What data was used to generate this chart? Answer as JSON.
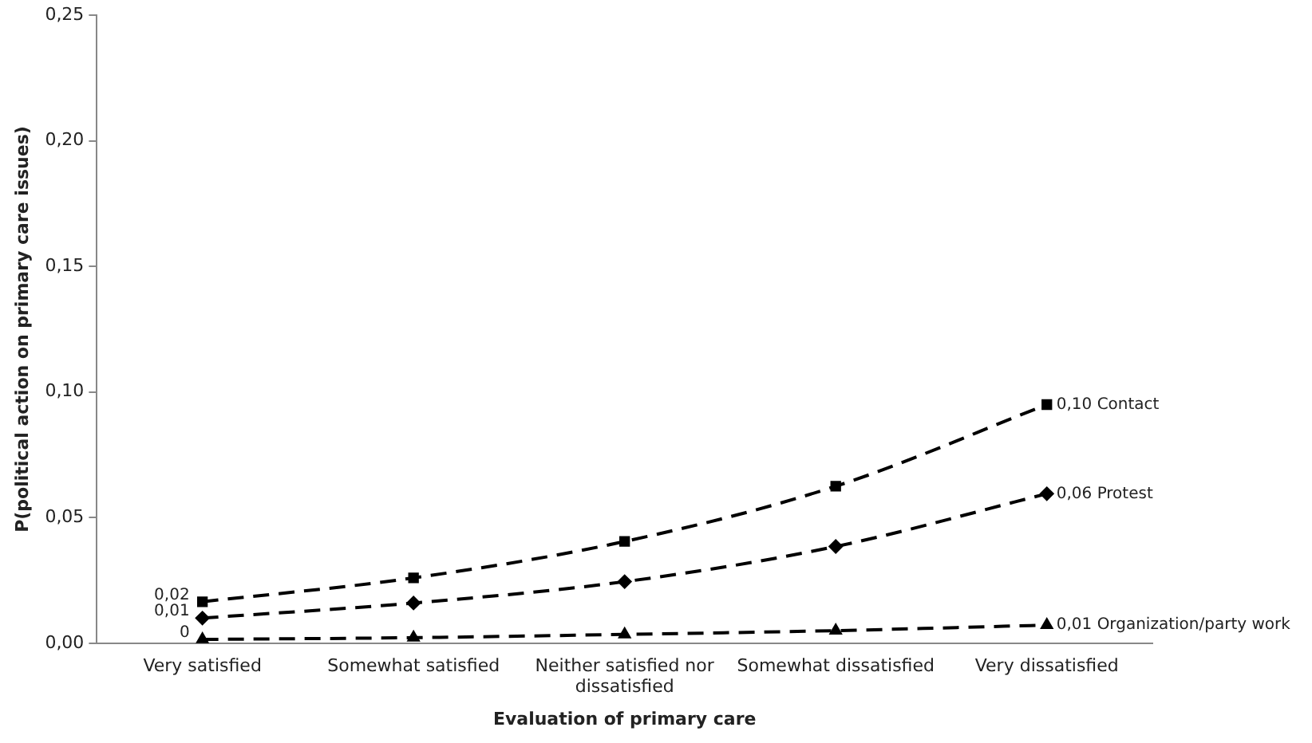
{
  "chart_data": {
    "type": "line",
    "xlabel": "Evaluation of primary care",
    "ylabel": "P(political action on primary care issues)",
    "categories": [
      "Very satisfied",
      "Somewhat satisfied",
      "Neither satisfied nor dissatisfied",
      "Somewhat dissatisfied",
      "Very dissatisfied"
    ],
    "ylim": [
      0,
      0.25
    ],
    "yticks": [
      {
        "value": 0,
        "label": "0,00"
      },
      {
        "value": 0.05,
        "label": "0,05"
      },
      {
        "value": 0.1,
        "label": "0,10"
      },
      {
        "value": 0.15,
        "label": "0,15"
      },
      {
        "value": 0.2,
        "label": "0,20"
      },
      {
        "value": 0.25,
        "label": "0,25"
      }
    ],
    "grid": false,
    "legend": false,
    "line_style": "dashed",
    "series": [
      {
        "name": "Contact",
        "color": "#000000",
        "marker": "square",
        "values": [
          0.0165,
          0.026,
          0.0405,
          0.0625,
          0.095
        ],
        "value_labels": [
          "0,02",
          null,
          null,
          null,
          "0,10"
        ]
      },
      {
        "name": "Protest",
        "color": "#000000",
        "marker": "diamond",
        "values": [
          0.01,
          0.016,
          0.0245,
          0.0385,
          0.0595
        ],
        "value_labels": [
          "0,01",
          null,
          null,
          null,
          "0,06"
        ]
      },
      {
        "name": "Organization/party work",
        "color": "#000000",
        "marker": "triangle",
        "values": [
          0.0015,
          0.0022,
          0.0035,
          0.005,
          0.0072
        ],
        "value_labels": [
          "0",
          null,
          null,
          null,
          "0,01"
        ]
      }
    ]
  }
}
